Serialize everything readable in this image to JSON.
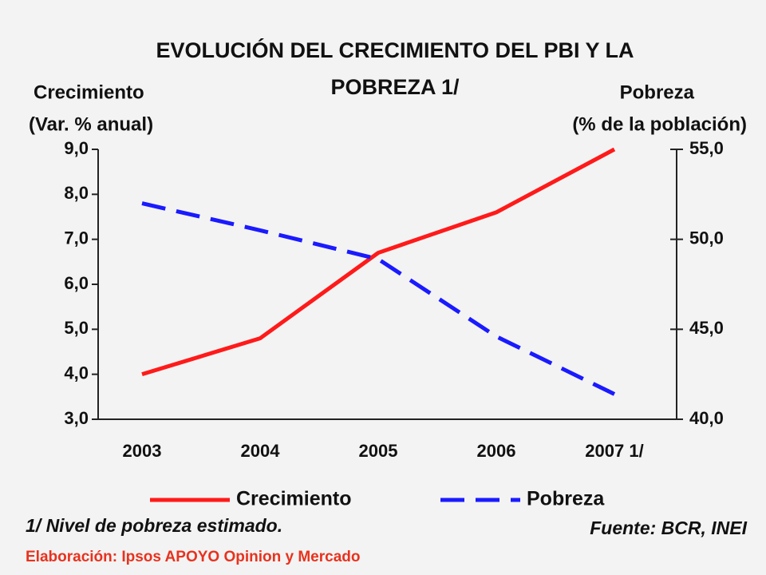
{
  "chart_data": {
    "type": "line",
    "title": [
      "EVOLUCIÓN DEL CRECIMIENTO DEL PBI Y LA",
      "POBREZA 1/"
    ],
    "y_label": [
      "Crecimiento",
      "(Var. % anual)"
    ],
    "y2_label": [
      "Pobreza",
      "(% de la población)"
    ],
    "categories": [
      "2003",
      "2004",
      "2005",
      "2006",
      "2007 1/"
    ],
    "series": [
      {
        "name": "Crecimiento",
        "color": "#ff1a1a",
        "dash": false,
        "values": [
          4.0,
          4.8,
          6.7,
          7.6,
          9.0
        ]
      },
      {
        "name": "Pobreza",
        "color": "#1a1aff",
        "dash": true,
        "axis": "y2",
        "values": [
          52.0,
          50.5,
          48.9,
          44.6,
          41.4
        ]
      }
    ],
    "ylim": [
      3,
      9
    ],
    "yticks": [
      {
        "value": 3,
        "label": "3,0"
      },
      {
        "value": 4,
        "label": "4,0"
      },
      {
        "value": 5,
        "label": "5,0"
      },
      {
        "value": 6,
        "label": "6,0"
      },
      {
        "value": 7,
        "label": "7,0"
      },
      {
        "value": 8,
        "label": "8,0"
      },
      {
        "value": 9,
        "label": "9,0"
      }
    ],
    "y2lim": [
      40,
      55
    ],
    "y2ticks": [
      {
        "value": 40,
        "label": "40,0"
      },
      {
        "value": 45,
        "label": "45,0"
      },
      {
        "value": 50,
        "label": "50,0"
      },
      {
        "value": 55,
        "label": "55,0"
      }
    ],
    "grid": false,
    "footnote": "1/ Nivel de pobreza estimado.",
    "source": "Fuente: BCR, INEI",
    "credit": "Elaboración:  Ipsos APOYO Opinion y Mercado"
  }
}
